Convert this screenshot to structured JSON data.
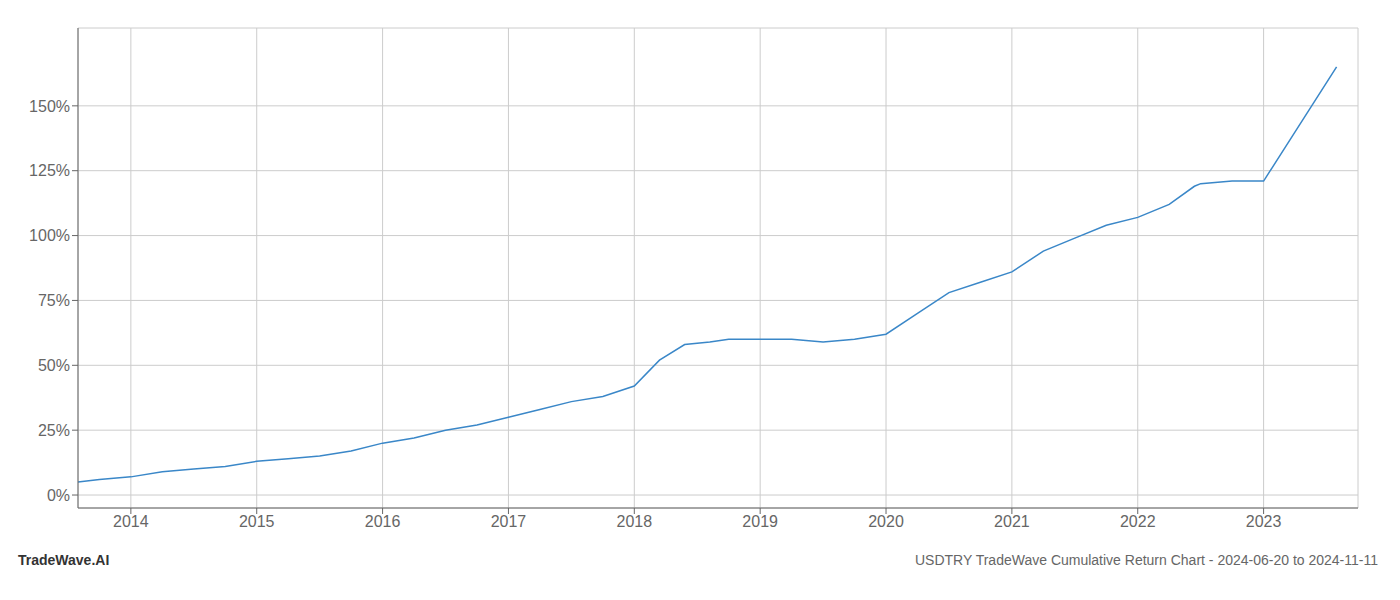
{
  "chart_data": {
    "type": "line",
    "title": "USDTRY TradeWave Cumulative Return Chart - 2024-06-20 to 2024-11-11",
    "annotations": [
      "TradeWave.AI"
    ],
    "x": [
      2013.58,
      2013.75,
      2014.0,
      2014.25,
      2014.5,
      2014.75,
      2015.0,
      2015.25,
      2015.5,
      2015.75,
      2016.0,
      2016.25,
      2016.5,
      2016.75,
      2017.0,
      2017.25,
      2017.5,
      2017.75,
      2018.0,
      2018.2,
      2018.4,
      2018.6,
      2018.75,
      2019.0,
      2019.25,
      2019.5,
      2019.75,
      2020.0,
      2020.25,
      2020.5,
      2020.75,
      2021.0,
      2021.25,
      2021.5,
      2021.75,
      2022.0,
      2022.25,
      2022.45,
      2022.5,
      2022.75,
      2023.0,
      2023.25,
      2023.58
    ],
    "values": [
      5,
      6,
      7,
      9,
      10,
      11,
      13,
      14,
      15,
      17,
      20,
      22,
      25,
      27,
      30,
      33,
      36,
      38,
      42,
      52,
      58,
      59,
      60,
      60,
      60,
      59,
      60,
      62,
      70,
      78,
      82,
      86,
      94,
      99,
      104,
      107,
      112,
      119,
      120,
      121,
      121,
      140,
      165
    ],
    "color": "#3a87c8",
    "xlim": [
      2013.58,
      2023.75
    ],
    "ylim": [
      -5,
      180
    ],
    "xticks": [
      2014,
      2015,
      2016,
      2017,
      2018,
      2019,
      2020,
      2021,
      2022,
      2023
    ],
    "yticks": [
      {
        "value": 0,
        "label": "0%"
      },
      {
        "value": 25,
        "label": "25%"
      },
      {
        "value": 50,
        "label": "50%"
      },
      {
        "value": 75,
        "label": "75%"
      },
      {
        "value": 100,
        "label": "100%"
      },
      {
        "value": 125,
        "label": "125%"
      },
      {
        "value": 150,
        "label": "150%"
      }
    ],
    "grid": true
  }
}
